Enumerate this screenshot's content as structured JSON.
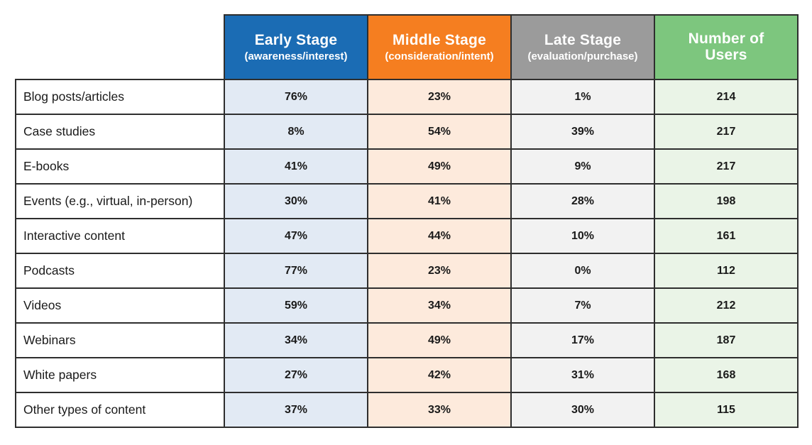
{
  "table": {
    "columns": [
      {
        "title": "Early Stage",
        "subtitle": "(awareness/interest)",
        "header_bg": "#1B6CB4",
        "cell_bg": "#E2EAF4"
      },
      {
        "title": "Middle Stage",
        "subtitle": "(consideration/intent)",
        "header_bg": "#F57E20",
        "cell_bg": "#FDEADC"
      },
      {
        "title": "Late Stage",
        "subtitle": "(evaluation/purchase)",
        "header_bg": "#9B9B9B",
        "cell_bg": "#F2F2F2"
      },
      {
        "title": "Number of Users",
        "subtitle": "",
        "header_bg": "#7DC67E",
        "cell_bg": "#EAF4E7"
      }
    ],
    "rows": [
      {
        "label": "Blog posts/articles",
        "values": [
          "76%",
          "23%",
          "1%",
          "214"
        ]
      },
      {
        "label": "Case studies",
        "values": [
          "8%",
          "54%",
          "39%",
          "217"
        ]
      },
      {
        "label": "E-books",
        "values": [
          "41%",
          "49%",
          "9%",
          "217"
        ]
      },
      {
        "label": "Events (e.g., virtual, in-person)",
        "values": [
          "30%",
          "41%",
          "28%",
          "198"
        ]
      },
      {
        "label": "Interactive content",
        "values": [
          "47%",
          "44%",
          "10%",
          "161"
        ]
      },
      {
        "label": "Podcasts",
        "values": [
          "77%",
          "23%",
          "0%",
          "112"
        ]
      },
      {
        "label": "Videos",
        "values": [
          "59%",
          "34%",
          "7%",
          "212"
        ]
      },
      {
        "label": "Webinars",
        "values": [
          "34%",
          "49%",
          "17%",
          "187"
        ]
      },
      {
        "label": "White papers",
        "values": [
          "27%",
          "42%",
          "31%",
          "168"
        ]
      },
      {
        "label": "Other types of content",
        "values": [
          "37%",
          "33%",
          "30%",
          "115"
        ]
      }
    ]
  },
  "chart_data": {
    "type": "table",
    "categories": [
      "Blog posts/articles",
      "Case studies",
      "E-books",
      "Events (e.g., virtual, in-person)",
      "Interactive content",
      "Podcasts",
      "Videos",
      "Webinars",
      "White papers",
      "Other types of content"
    ],
    "series": [
      {
        "name": "Early Stage (awareness/interest)",
        "unit": "%",
        "values": [
          76,
          8,
          41,
          30,
          47,
          77,
          59,
          34,
          27,
          37
        ]
      },
      {
        "name": "Middle Stage (consideration/intent)",
        "unit": "%",
        "values": [
          23,
          54,
          49,
          41,
          44,
          23,
          34,
          49,
          42,
          33
        ]
      },
      {
        "name": "Late Stage (evaluation/purchase)",
        "unit": "%",
        "values": [
          1,
          39,
          9,
          28,
          10,
          0,
          7,
          17,
          31,
          30
        ]
      },
      {
        "name": "Number of Users",
        "unit": "count",
        "values": [
          214,
          217,
          217,
          198,
          161,
          112,
          212,
          187,
          168,
          115
        ]
      }
    ]
  }
}
